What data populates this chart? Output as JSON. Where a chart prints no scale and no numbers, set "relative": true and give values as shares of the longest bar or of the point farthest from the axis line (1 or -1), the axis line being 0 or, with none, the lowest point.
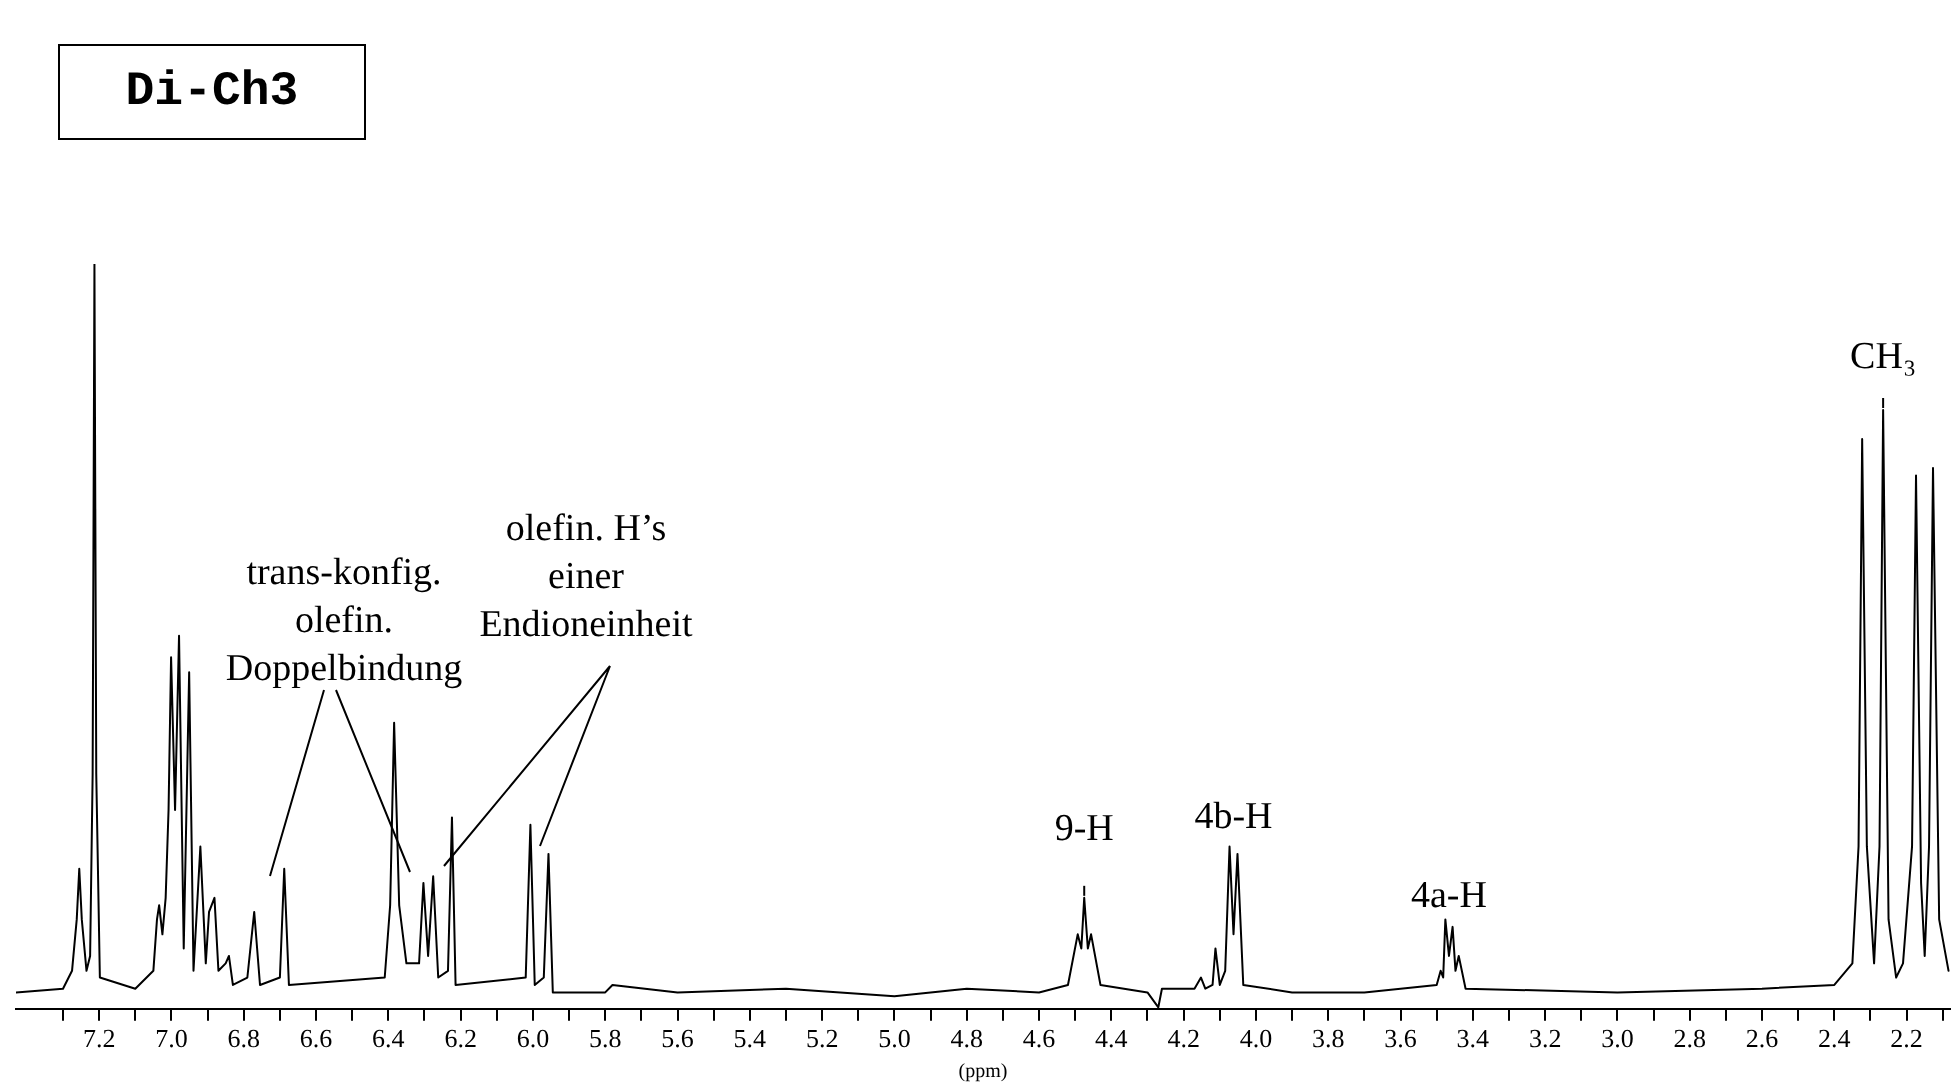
{
  "chart_data": {
    "type": "line",
    "title": "Di-Ch3",
    "xlabel": "(ppm)",
    "relative": true,
    "marker": "none",
    "line_style": "solid",
    "xlim": [
      7.43,
      2.08
    ],
    "xticks": [
      {
        "value": 7.3,
        "label": null
      },
      7.2,
      {
        "value": 7.1,
        "label": null
      },
      {
        "value": 7.0,
        "label": "7.0"
      },
      {
        "value": 6.9,
        "label": null
      },
      6.8,
      {
        "value": 6.7,
        "label": null
      },
      6.6,
      {
        "value": 6.5,
        "label": null
      },
      6.4,
      {
        "value": 6.3,
        "label": null
      },
      6.2,
      {
        "value": 6.1,
        "label": null
      },
      {
        "value": 6.0,
        "label": "6.0"
      },
      {
        "value": 5.9,
        "label": null
      },
      5.8,
      {
        "value": 5.7,
        "label": null
      },
      5.6,
      {
        "value": 5.5,
        "label": null
      },
      5.4,
      {
        "value": 5.3,
        "label": null
      },
      5.2,
      {
        "value": 5.1,
        "label": null
      },
      {
        "value": 5.0,
        "label": "5.0"
      },
      {
        "value": 4.9,
        "label": null
      },
      4.8,
      {
        "value": 4.7,
        "label": null
      },
      4.6,
      {
        "value": 4.5,
        "label": null
      },
      4.4,
      {
        "value": 4.3,
        "label": null
      },
      4.2,
      {
        "value": 4.1,
        "label": null
      },
      {
        "value": 4.0,
        "label": "4.0"
      },
      {
        "value": 3.9,
        "label": null
      },
      3.8,
      {
        "value": 3.7,
        "label": null
      },
      3.6,
      {
        "value": 3.5,
        "label": null
      },
      3.4,
      {
        "value": 3.3,
        "label": null
      },
      3.2,
      {
        "value": 3.1,
        "label": null
      },
      {
        "value": 3.0,
        "label": "3.0"
      },
      {
        "value": 2.9,
        "label": null
      },
      2.8,
      {
        "value": 2.7,
        "label": null
      },
      2.6,
      {
        "value": 2.5,
        "label": null
      },
      2.4,
      {
        "value": 2.3,
        "label": null
      },
      2.2,
      {
        "value": 2.1,
        "label": null
      }
    ],
    "series": [
      {
        "color": "#000000",
        "x": [
          7.43,
          7.3,
          7.275,
          7.262,
          7.255,
          7.248,
          7.235,
          7.225,
          7.218,
          7.213,
          7.208,
          7.198,
          7.1,
          7.05,
          7.04,
          7.034,
          7.025,
          7.016,
          7.008,
          7.001,
          6.99,
          6.979,
          6.966,
          6.951,
          6.939,
          6.92,
          6.905,
          6.896,
          6.881,
          6.87,
          6.85,
          6.841,
          6.83,
          6.79,
          6.771,
          6.755,
          6.7,
          6.688,
          6.675,
          6.41,
          6.395,
          6.384,
          6.37,
          6.35,
          6.315,
          6.303,
          6.29,
          6.276,
          6.262,
          6.235,
          6.224,
          6.214,
          6.02,
          6.007,
          5.995,
          5.97,
          5.957,
          5.945,
          5.8,
          5.78,
          5.6,
          5.3,
          5.0,
          4.8,
          4.6,
          4.52,
          4.493,
          4.483,
          4.475,
          4.465,
          4.456,
          4.43,
          4.3,
          4.27,
          4.26,
          4.17,
          4.152,
          4.14,
          4.12,
          4.112,
          4.1,
          4.085,
          4.073,
          4.062,
          4.051,
          4.035,
          3.9,
          3.7,
          3.5,
          3.489,
          3.482,
          3.476,
          3.466,
          3.456,
          3.448,
          3.439,
          3.42,
          3.0,
          2.6,
          2.4,
          2.35,
          2.333,
          2.323,
          2.31,
          2.29,
          2.275,
          2.265,
          2.25,
          2.229,
          2.21,
          2.185,
          2.174,
          2.16,
          2.15,
          2.138,
          2.127,
          2.11,
          2.084
        ],
        "values": [
          0.022,
          0.027,
          0.051,
          0.12,
          0.188,
          0.12,
          0.051,
          0.071,
          0.315,
          1,
          0.315,
          0.042,
          0.027,
          0.051,
          0.12,
          0.139,
          0.1,
          0.149,
          0.267,
          0.472,
          0.267,
          0.501,
          0.081,
          0.452,
          0.051,
          0.218,
          0.061,
          0.13,
          0.149,
          0.051,
          0.061,
          0.071,
          0.032,
          0.042,
          0.13,
          0.032,
          0.042,
          0.188,
          0.032,
          0.042,
          0.139,
          0.384,
          0.139,
          0.061,
          0.061,
          0.169,
          0.071,
          0.178,
          0.042,
          0.051,
          0.257,
          0.032,
          0.042,
          0.247,
          0.032,
          0.042,
          0.208,
          0.022,
          0.022,
          0.032,
          0.022,
          0.027,
          0.017,
          0.027,
          0.022,
          0.032,
          0.1,
          0.081,
          0.149,
          0.081,
          0.1,
          0.032,
          0.022,
          0.002,
          0.027,
          0.027,
          0.042,
          0.027,
          0.032,
          0.081,
          0.032,
          0.051,
          0.218,
          0.1,
          0.208,
          0.032,
          0.022,
          0.022,
          0.032,
          0.051,
          0.042,
          0.12,
          0.071,
          0.11,
          0.051,
          0.071,
          0.027,
          0.022,
          0.027,
          0.032,
          0.061,
          0.218,
          0.765,
          0.218,
          0.061,
          0.218,
          0.804,
          0.12,
          0.042,
          0.061,
          0.218,
          0.716,
          0.169,
          0.071,
          0.218,
          0.726,
          0.12,
          0.051
        ]
      }
    ],
    "annotations": [
      "trans-konfig.\nolefin.\nDoppelbindung",
      "olefin. H’s\neiner\nEndioneinheit",
      {
        "text": "9-H",
        "x": 4.475,
        "y": 0.149
      },
      {
        "text": "4b-H",
        "x": 4.062,
        "y": 0.218
      },
      {
        "text": "4a-H",
        "x": 3.466,
        "y": 0.12
      },
      {
        "text": "CH₃",
        "x": 2.265,
        "y": 0.804
      }
    ]
  }
}
